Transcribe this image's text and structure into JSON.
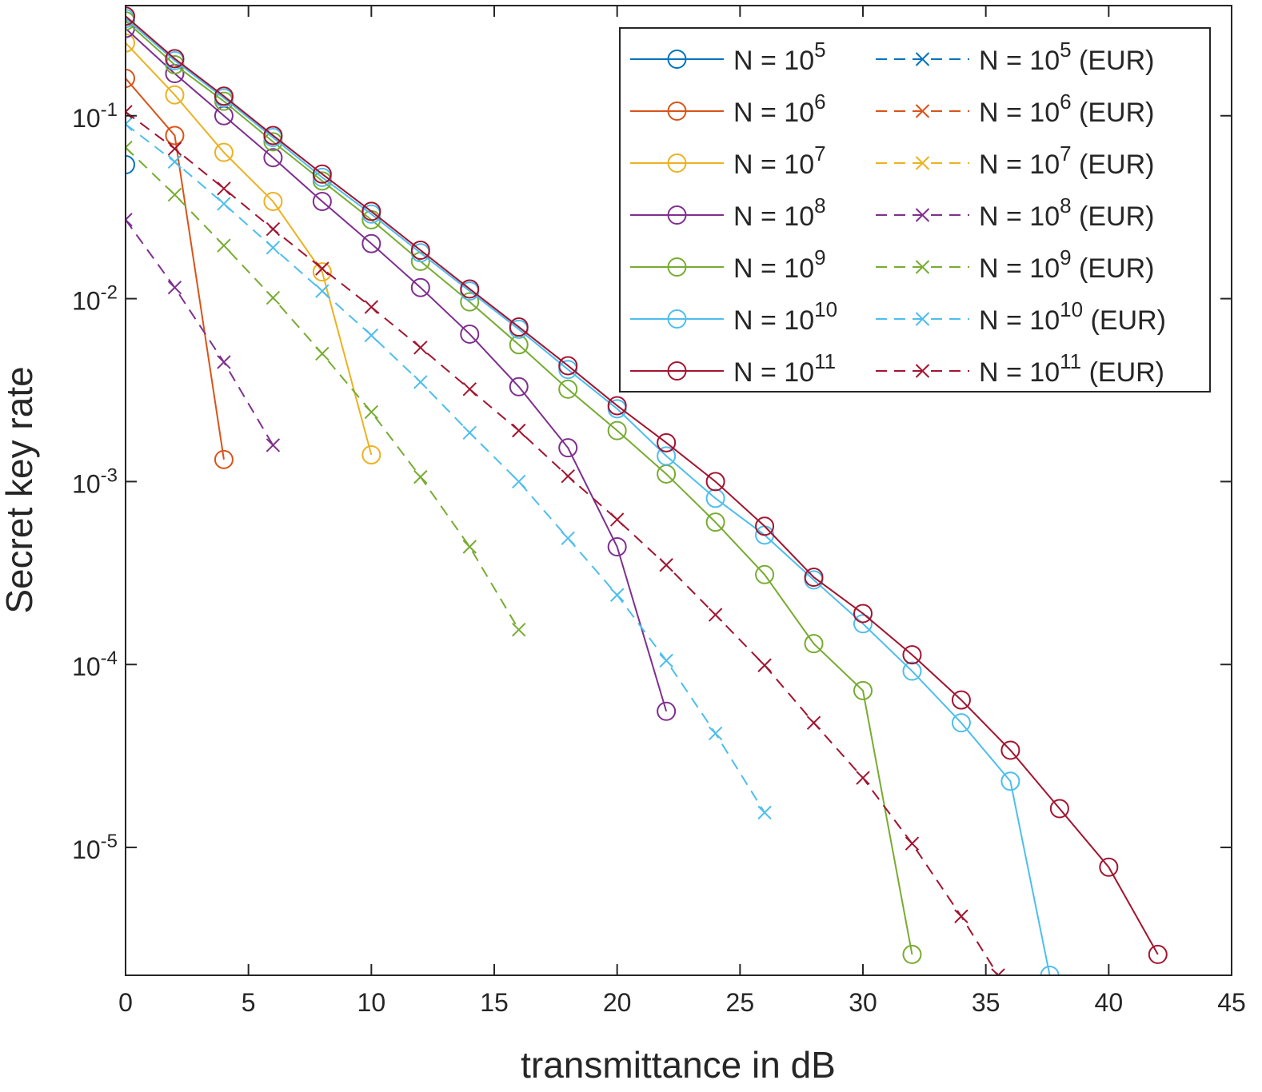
{
  "chart_data": {
    "type": "line",
    "xlabel": "transmittance in dB",
    "ylabel": "Secret key rate",
    "xlim": [
      0,
      45
    ],
    "ylim": [
      2e-06,
      0.4
    ],
    "yscale": "log",
    "grid": false,
    "legend_position": "top-right",
    "x_ticks": [
      {
        "v": 0,
        "label": "0"
      },
      {
        "v": 5,
        "label": "5"
      },
      {
        "v": 10,
        "label": "10"
      },
      {
        "v": 15,
        "label": "15"
      },
      {
        "v": 20,
        "label": "20"
      },
      {
        "v": 25,
        "label": "25"
      },
      {
        "v": 30,
        "label": "30"
      },
      {
        "v": 35,
        "label": "35"
      },
      {
        "v": 40,
        "label": "40"
      },
      {
        "v": 45,
        "label": "45"
      }
    ],
    "y_ticks": [
      {
        "v": 0.1,
        "base": "10",
        "exp": "-1"
      },
      {
        "v": 0.01,
        "base": "10",
        "exp": "-2"
      },
      {
        "v": 0.001,
        "base": "10",
        "exp": "-3"
      },
      {
        "v": 0.0001,
        "base": "10",
        "exp": "-4"
      },
      {
        "v": 1e-05,
        "base": "10",
        "exp": "-5"
      }
    ],
    "series": [
      {
        "name": "N = 10^5",
        "base": "N = 10",
        "exp": "5",
        "suffix": "",
        "color": "#0072BD",
        "dashed": false,
        "marker": "circle",
        "x": [
          0
        ],
        "y": [
          0.054
        ]
      },
      {
        "name": "N = 10^6",
        "base": "N = 10",
        "exp": "6",
        "suffix": "",
        "color": "#D95319",
        "dashed": false,
        "marker": "circle",
        "x": [
          0,
          2,
          4
        ],
        "y": [
          0.16,
          0.078,
          0.00132
        ]
      },
      {
        "name": "N = 10^7",
        "base": "N = 10",
        "exp": "7",
        "suffix": "",
        "color": "#EDB120",
        "dashed": false,
        "marker": "circle",
        "x": [
          0,
          2,
          4,
          6,
          8,
          10
        ],
        "y": [
          0.25,
          0.13,
          0.063,
          0.034,
          0.014,
          0.0014
        ]
      },
      {
        "name": "N = 10^8",
        "base": "N = 10",
        "exp": "8",
        "suffix": "",
        "color": "#7E2F8E",
        "dashed": false,
        "marker": "circle",
        "x": [
          0,
          2,
          4,
          6,
          8,
          10,
          12,
          14,
          16,
          18,
          20,
          22
        ],
        "y": [
          0.3,
          0.17,
          0.1,
          0.059,
          0.034,
          0.02,
          0.0115,
          0.0064,
          0.0033,
          0.00153,
          0.00044,
          5.55e-05
        ]
      },
      {
        "name": "N = 10^9",
        "base": "N = 10",
        "exp": "9",
        "suffix": "",
        "color": "#77AC30",
        "dashed": false,
        "marker": "circle",
        "x": [
          0,
          2,
          4,
          6,
          8,
          10,
          12,
          14,
          16,
          18,
          20,
          22,
          24,
          26,
          28,
          30,
          32
        ],
        "y": [
          0.33,
          0.19,
          0.12,
          0.072,
          0.044,
          0.027,
          0.016,
          0.0096,
          0.0056,
          0.0032,
          0.0019,
          0.0011,
          0.0006,
          0.00031,
          0.00013,
          7.2e-05,
          2.6e-06
        ]
      },
      {
        "name": "N = 10^10",
        "base": "N = 10",
        "exp": "10",
        "suffix": "",
        "color": "#4DBEEE",
        "dashed": false,
        "marker": "circle",
        "x": [
          0,
          2,
          4,
          6,
          8,
          10,
          12,
          14,
          16,
          18,
          20,
          22,
          24,
          26,
          28,
          30,
          32,
          34,
          36,
          37.6
        ],
        "y": [
          0.34,
          0.2,
          0.125,
          0.076,
          0.046,
          0.029,
          0.0178,
          0.011,
          0.0068,
          0.0041,
          0.0025,
          0.00138,
          0.00081,
          0.00051,
          0.00029,
          0.000167,
          9.2e-05,
          4.8e-05,
          2.3e-05,
          2e-06
        ]
      },
      {
        "name": "N = 10^11",
        "base": "N = 10",
        "exp": "11",
        "suffix": "",
        "color": "#A2142F",
        "dashed": false,
        "marker": "circle",
        "x": [
          0,
          2,
          4,
          6,
          8,
          10,
          12,
          14,
          16,
          18,
          20,
          22,
          24,
          26,
          28,
          30,
          32,
          34,
          36,
          38,
          40,
          42
        ],
        "y": [
          0.35,
          0.205,
          0.128,
          0.078,
          0.048,
          0.03,
          0.0184,
          0.0113,
          0.007,
          0.0043,
          0.0026,
          0.00163,
          0.001,
          0.00057,
          0.0003,
          0.00019,
          0.000113,
          6.4e-05,
          3.4e-05,
          1.63e-05,
          7.8e-06,
          2.6e-06
        ]
      },
      {
        "name": "N = 10^5 (EUR)",
        "base": "N = 10",
        "exp": "5",
        "suffix": " (EUR)",
        "color": "#0072BD",
        "dashed": true,
        "marker": "x",
        "x": [],
        "y": []
      },
      {
        "name": "N = 10^6 (EUR)",
        "base": "N = 10",
        "exp": "6",
        "suffix": " (EUR)",
        "color": "#D95319",
        "dashed": true,
        "marker": "x",
        "x": [],
        "y": []
      },
      {
        "name": "N = 10^7 (EUR)",
        "base": "N = 10",
        "exp": "7",
        "suffix": " (EUR)",
        "color": "#EDB120",
        "dashed": true,
        "marker": "x",
        "x": [],
        "y": []
      },
      {
        "name": "N = 10^8 (EUR)",
        "base": "N = 10",
        "exp": "8",
        "suffix": " (EUR)",
        "color": "#7E2F8E",
        "dashed": true,
        "marker": "x",
        "x": [
          0,
          2,
          4,
          6
        ],
        "y": [
          0.027,
          0.0115,
          0.0045,
          0.00158
        ]
      },
      {
        "name": "N = 10^9 (EUR)",
        "base": "N = 10",
        "exp": "9",
        "suffix": " (EUR)",
        "color": "#77AC30",
        "dashed": true,
        "marker": "x",
        "x": [
          0,
          2,
          4,
          6,
          8,
          10,
          12,
          14,
          16
        ],
        "y": [
          0.067,
          0.037,
          0.0195,
          0.0101,
          0.005,
          0.0024,
          0.00106,
          0.00044,
          0.000155
        ]
      },
      {
        "name": "N = 10^10 (EUR)",
        "base": "N = 10",
        "exp": "10",
        "suffix": " (EUR)",
        "color": "#4DBEEE",
        "dashed": true,
        "marker": "x",
        "x": [
          0,
          2,
          4,
          6,
          8,
          10,
          12,
          14,
          16,
          18,
          20,
          22,
          24,
          26
        ],
        "y": [
          0.09,
          0.056,
          0.033,
          0.019,
          0.011,
          0.0063,
          0.0035,
          0.00185,
          0.001,
          0.00049,
          0.00024,
          0.000105,
          4.2e-05,
          1.55e-05
        ]
      },
      {
        "name": "N = 10^11 (EUR)",
        "base": "N = 10",
        "exp": "11",
        "suffix": " (EUR)",
        "color": "#A2142F",
        "dashed": true,
        "marker": "x",
        "x": [
          0,
          2,
          4,
          6,
          8,
          10,
          12,
          14,
          16,
          18,
          20,
          22,
          24,
          26,
          28,
          30,
          32,
          34,
          35.5
        ],
        "y": [
          0.105,
          0.066,
          0.04,
          0.024,
          0.0146,
          0.009,
          0.0054,
          0.0032,
          0.0019,
          0.00107,
          0.00062,
          0.00035,
          0.000187,
          9.9e-05,
          4.8e-05,
          2.4e-05,
          1.05e-05,
          4.2e-06,
          2e-06
        ]
      }
    ]
  }
}
